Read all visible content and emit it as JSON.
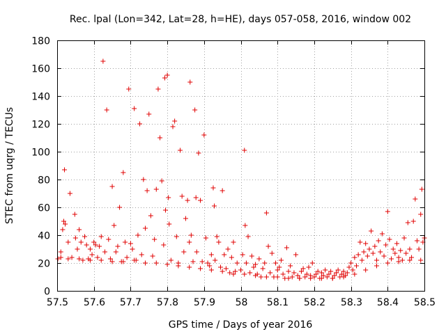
{
  "chart_data": {
    "type": "scatter",
    "title": "Rec. lpal (Lon=342, Lat=28, h=HE), days 057-058, 2016, window 002",
    "xlabel": "GPS time / Days of year 2016",
    "ylabel": "STEC from uqrg / TECUs",
    "xlim": [
      57.5,
      58.5
    ],
    "ylim": [
      0,
      180
    ],
    "xticks": [
      "57.5",
      "57.6",
      "57.7",
      "57.8",
      "57.9",
      "58",
      "58.1",
      "58.2",
      "58.3",
      "58.4",
      "58.5"
    ],
    "yticks": [
      "0",
      "20",
      "40",
      "60",
      "80",
      "100",
      "120",
      "140",
      "160",
      "180"
    ],
    "grid": true,
    "marker": "+",
    "color": "#e00000",
    "points": [
      [
        57.502,
        23
      ],
      [
        57.51,
        28
      ],
      [
        57.515,
        44
      ],
      [
        57.518,
        50
      ],
      [
        57.52,
        87
      ],
      [
        57.522,
        48
      ],
      [
        57.53,
        35
      ],
      [
        57.535,
        70
      ],
      [
        57.54,
        24
      ],
      [
        57.548,
        55
      ],
      [
        57.55,
        38
      ],
      [
        57.555,
        30
      ],
      [
        57.56,
        44
      ],
      [
        57.565,
        35
      ],
      [
        57.57,
        22
      ],
      [
        57.575,
        39
      ],
      [
        57.58,
        33
      ],
      [
        57.585,
        23
      ],
      [
        57.59,
        30
      ],
      [
        57.595,
        26
      ],
      [
        57.6,
        35
      ],
      [
        57.605,
        33
      ],
      [
        57.61,
        24
      ],
      [
        57.615,
        32
      ],
      [
        57.62,
        39
      ],
      [
        57.625,
        165
      ],
      [
        57.63,
        28
      ],
      [
        57.635,
        130
      ],
      [
        57.64,
        37
      ],
      [
        57.645,
        23
      ],
      [
        57.65,
        75
      ],
      [
        57.655,
        47
      ],
      [
        57.66,
        28
      ],
      [
        57.665,
        32
      ],
      [
        57.67,
        60
      ],
      [
        57.675,
        21
      ],
      [
        57.68,
        85
      ],
      [
        57.685,
        35
      ],
      [
        57.69,
        24
      ],
      [
        57.695,
        145
      ],
      [
        57.7,
        34
      ],
      [
        57.705,
        30
      ],
      [
        57.71,
        131
      ],
      [
        57.715,
        22
      ],
      [
        57.72,
        40
      ],
      [
        57.725,
        120
      ],
      [
        57.73,
        26
      ],
      [
        57.735,
        80
      ],
      [
        57.74,
        45
      ],
      [
        57.745,
        72
      ],
      [
        57.75,
        127
      ],
      [
        57.755,
        54
      ],
      [
        57.76,
        25
      ],
      [
        57.765,
        37
      ],
      [
        57.77,
        73
      ],
      [
        57.775,
        145
      ],
      [
        57.78,
        110
      ],
      [
        57.785,
        79
      ],
      [
        57.79,
        33
      ],
      [
        57.793,
        153
      ],
      [
        57.795,
        58
      ],
      [
        57.8,
        155
      ],
      [
        57.803,
        67
      ],
      [
        57.805,
        48
      ],
      [
        57.81,
        22
      ],
      [
        57.815,
        118
      ],
      [
        57.82,
        122
      ],
      [
        57.825,
        39
      ],
      [
        57.83,
        20
      ],
      [
        57.835,
        101
      ],
      [
        57.84,
        68
      ],
      [
        57.845,
        28
      ],
      [
        57.85,
        52
      ],
      [
        57.855,
        65
      ],
      [
        57.86,
        35
      ],
      [
        57.862,
        150
      ],
      [
        57.865,
        40
      ],
      [
        57.87,
        21
      ],
      [
        57.875,
        130
      ],
      [
        57.878,
        67
      ],
      [
        57.88,
        28
      ],
      [
        57.885,
        99
      ],
      [
        57.89,
        65
      ],
      [
        57.895,
        21
      ],
      [
        57.9,
        112
      ],
      [
        57.905,
        38
      ],
      [
        57.91,
        20
      ],
      [
        57.915,
        18
      ],
      [
        57.92,
        26
      ],
      [
        57.925,
        74
      ],
      [
        57.928,
        61
      ],
      [
        57.93,
        22
      ],
      [
        57.935,
        39
      ],
      [
        57.94,
        35
      ],
      [
        57.945,
        17
      ],
      [
        57.95,
        72
      ],
      [
        57.955,
        26
      ],
      [
        57.96,
        16
      ],
      [
        57.965,
        30
      ],
      [
        57.97,
        13
      ],
      [
        57.975,
        24
      ],
      [
        57.98,
        35
      ],
      [
        57.985,
        14
      ],
      [
        57.99,
        20
      ],
      [
        58.0,
        15
      ],
      [
        58.005,
        26
      ],
      [
        58.01,
        101
      ],
      [
        58.012,
        47
      ],
      [
        58.015,
        20
      ],
      [
        58.02,
        39
      ],
      [
        58.025,
        13
      ],
      [
        58.03,
        25
      ],
      [
        58.035,
        17
      ],
      [
        58.04,
        19
      ],
      [
        58.045,
        12
      ],
      [
        58.05,
        23
      ],
      [
        58.055,
        10
      ],
      [
        58.06,
        16
      ],
      [
        58.065,
        20
      ],
      [
        58.07,
        56
      ],
      [
        58.075,
        32
      ],
      [
        58.08,
        13
      ],
      [
        58.085,
        27
      ],
      [
        58.09,
        10
      ],
      [
        58.095,
        20
      ],
      [
        58.1,
        15
      ],
      [
        58.105,
        17
      ],
      [
        58.11,
        22
      ],
      [
        58.115,
        12
      ],
      [
        58.12,
        9
      ],
      [
        58.125,
        31
      ],
      [
        58.13,
        14
      ],
      [
        58.135,
        18
      ],
      [
        58.14,
        10
      ],
      [
        58.145,
        13
      ],
      [
        58.15,
        26
      ],
      [
        58.155,
        11
      ],
      [
        58.16,
        9
      ],
      [
        58.165,
        14
      ],
      [
        58.17,
        16
      ],
      [
        58.175,
        10
      ],
      [
        58.18,
        12
      ],
      [
        58.185,
        17
      ],
      [
        58.19,
        11
      ],
      [
        58.195,
        20
      ],
      [
        58.2,
        10
      ],
      [
        58.205,
        12
      ],
      [
        58.21,
        14
      ],
      [
        58.215,
        9
      ],
      [
        58.22,
        13
      ],
      [
        58.225,
        11
      ],
      [
        58.23,
        15
      ],
      [
        58.235,
        10
      ],
      [
        58.24,
        12
      ],
      [
        58.245,
        14
      ],
      [
        58.25,
        9
      ],
      [
        58.255,
        11
      ],
      [
        58.26,
        13
      ],
      [
        58.265,
        15
      ],
      [
        58.27,
        10
      ],
      [
        58.275,
        12
      ],
      [
        58.28,
        14
      ],
      [
        58.285,
        11
      ],
      [
        58.29,
        13
      ],
      [
        58.295,
        17
      ],
      [
        58.3,
        20
      ],
      [
        58.305,
        15
      ],
      [
        58.31,
        24
      ],
      [
        58.315,
        18
      ],
      [
        58.32,
        26
      ],
      [
        58.325,
        35
      ],
      [
        58.33,
        22
      ],
      [
        58.335,
        28
      ],
      [
        58.34,
        34
      ],
      [
        58.345,
        25
      ],
      [
        58.35,
        30
      ],
      [
        58.355,
        43
      ],
      [
        58.36,
        27
      ],
      [
        58.365,
        32
      ],
      [
        58.37,
        22
      ],
      [
        58.375,
        36
      ],
      [
        58.38,
        28
      ],
      [
        58.385,
        41
      ],
      [
        58.39,
        25
      ],
      [
        58.395,
        33
      ],
      [
        58.4,
        57
      ],
      [
        58.405,
        37
      ],
      [
        58.41,
        23
      ],
      [
        58.415,
        30
      ],
      [
        58.42,
        27
      ],
      [
        58.425,
        34
      ],
      [
        58.43,
        24
      ],
      [
        58.435,
        29
      ],
      [
        58.44,
        22
      ],
      [
        58.445,
        38
      ],
      [
        58.45,
        27
      ],
      [
        58.455,
        49
      ],
      [
        58.46,
        30
      ],
      [
        58.465,
        24
      ],
      [
        58.47,
        50
      ],
      [
        58.475,
        66
      ],
      [
        58.48,
        36
      ],
      [
        58.485,
        30
      ],
      [
        58.49,
        55
      ],
      [
        58.493,
        73
      ],
      [
        58.496,
        35
      ],
      [
        58.5,
        38
      ],
      [
        57.51,
        24
      ],
      [
        57.53,
        23
      ],
      [
        57.56,
        23
      ],
      [
        57.59,
        22
      ],
      [
        57.62,
        22
      ],
      [
        57.65,
        21
      ],
      [
        57.68,
        21
      ],
      [
        57.71,
        22
      ],
      [
        57.74,
        20
      ],
      [
        57.77,
        20
      ],
      [
        57.8,
        19
      ],
      [
        57.83,
        18
      ],
      [
        57.86,
        17
      ],
      [
        57.89,
        16
      ],
      [
        57.92,
        15
      ],
      [
        57.95,
        14
      ],
      [
        57.98,
        12
      ],
      [
        58.01,
        12
      ],
      [
        58.04,
        11
      ],
      [
        58.07,
        10
      ],
      [
        58.1,
        10
      ],
      [
        58.13,
        9
      ],
      [
        58.16,
        9
      ],
      [
        58.19,
        9
      ],
      [
        58.22,
        9
      ],
      [
        58.25,
        9
      ],
      [
        58.28,
        10
      ],
      [
        58.31,
        12
      ],
      [
        58.34,
        15
      ],
      [
        58.37,
        18
      ],
      [
        58.4,
        20
      ],
      [
        58.43,
        21
      ],
      [
        58.46,
        22
      ],
      [
        58.49,
        22
      ]
    ]
  }
}
